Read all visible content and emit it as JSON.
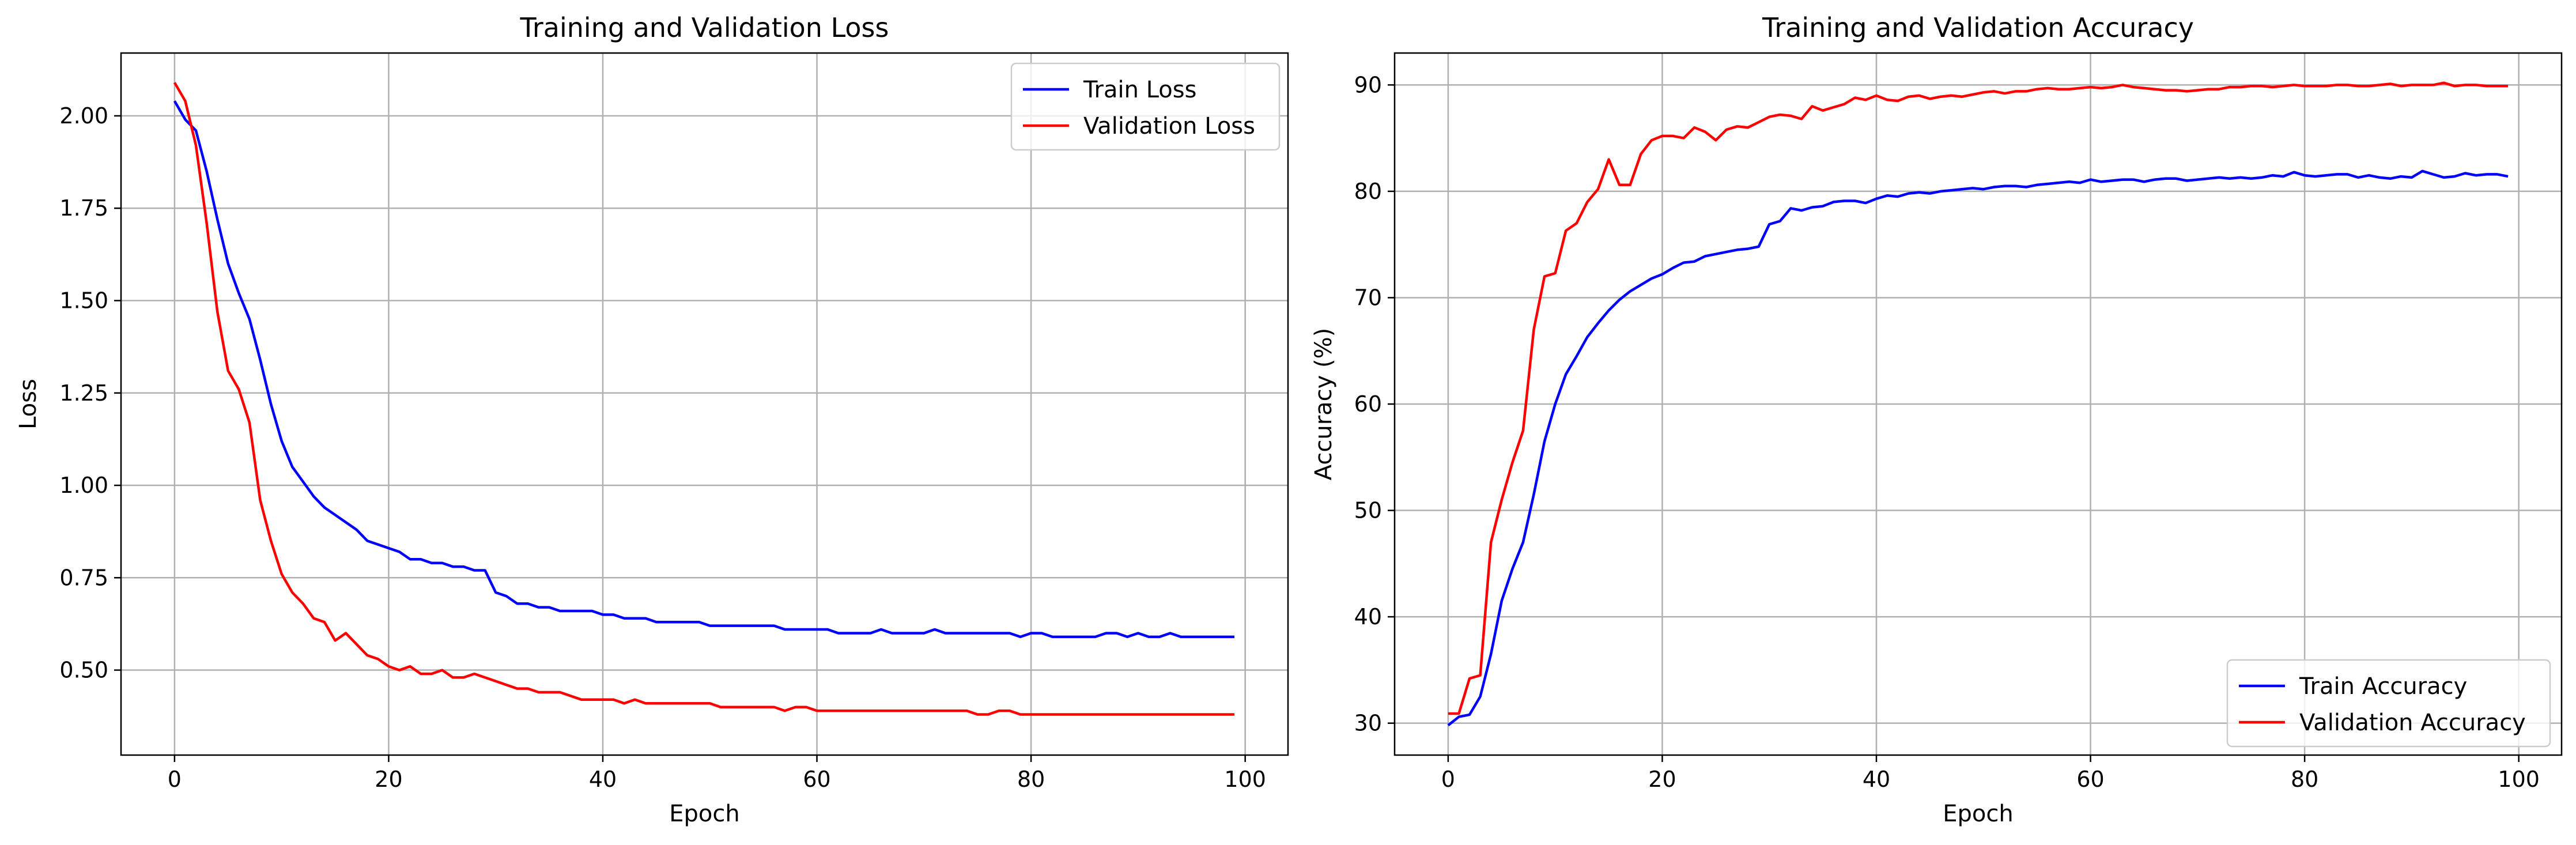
{
  "chart_data": [
    {
      "type": "line",
      "title": "Training and Validation Loss",
      "xlabel": "Epoch",
      "ylabel": "Loss",
      "xlim": [
        -5,
        104
      ],
      "ylim": [
        0.27,
        2.17
      ],
      "xticks": [
        0,
        20,
        40,
        60,
        80,
        100
      ],
      "yticks": [
        0.5,
        0.75,
        1.0,
        1.25,
        1.5,
        1.75,
        2.0
      ],
      "ytick_decimals": 2,
      "grid": true,
      "legend_position": "upper right",
      "series": [
        {
          "name": "Train Loss",
          "color": "#0000ff",
          "values": [
            2.04,
            1.99,
            1.96,
            1.85,
            1.72,
            1.6,
            1.52,
            1.45,
            1.34,
            1.22,
            1.12,
            1.05,
            1.01,
            0.97,
            0.94,
            0.92,
            0.9,
            0.88,
            0.85,
            0.84,
            0.83,
            0.82,
            0.8,
            0.8,
            0.79,
            0.79,
            0.78,
            0.78,
            0.77,
            0.77,
            0.71,
            0.7,
            0.68,
            0.68,
            0.67,
            0.67,
            0.66,
            0.66,
            0.66,
            0.66,
            0.65,
            0.65,
            0.64,
            0.64,
            0.64,
            0.63,
            0.63,
            0.63,
            0.63,
            0.63,
            0.62,
            0.62,
            0.62,
            0.62,
            0.62,
            0.62,
            0.62,
            0.61,
            0.61,
            0.61,
            0.61,
            0.61,
            0.6,
            0.6,
            0.6,
            0.6,
            0.61,
            0.6,
            0.6,
            0.6,
            0.6,
            0.61,
            0.6,
            0.6,
            0.6,
            0.6,
            0.6,
            0.6,
            0.6,
            0.59,
            0.6,
            0.6,
            0.59,
            0.59,
            0.59,
            0.59,
            0.59,
            0.6,
            0.6,
            0.59,
            0.6,
            0.59,
            0.59,
            0.6,
            0.59,
            0.59,
            0.59,
            0.59,
            0.59,
            0.59
          ]
        },
        {
          "name": "Validation Loss",
          "color": "#ff0000",
          "values": [
            2.09,
            2.04,
            1.92,
            1.71,
            1.47,
            1.31,
            1.26,
            1.17,
            0.96,
            0.85,
            0.76,
            0.71,
            0.68,
            0.64,
            0.63,
            0.58,
            0.6,
            0.57,
            0.54,
            0.53,
            0.51,
            0.5,
            0.51,
            0.49,
            0.49,
            0.5,
            0.48,
            0.48,
            0.49,
            0.48,
            0.47,
            0.46,
            0.45,
            0.45,
            0.44,
            0.44,
            0.44,
            0.43,
            0.42,
            0.42,
            0.42,
            0.42,
            0.41,
            0.42,
            0.41,
            0.41,
            0.41,
            0.41,
            0.41,
            0.41,
            0.41,
            0.4,
            0.4,
            0.4,
            0.4,
            0.4,
            0.4,
            0.39,
            0.4,
            0.4,
            0.39,
            0.39,
            0.39,
            0.39,
            0.39,
            0.39,
            0.39,
            0.39,
            0.39,
            0.39,
            0.39,
            0.39,
            0.39,
            0.39,
            0.39,
            0.38,
            0.38,
            0.39,
            0.39,
            0.38,
            0.38,
            0.38,
            0.38,
            0.38,
            0.38,
            0.38,
            0.38,
            0.38,
            0.38,
            0.38,
            0.38,
            0.38,
            0.38,
            0.38,
            0.38,
            0.38,
            0.38,
            0.38,
            0.38,
            0.38
          ]
        }
      ]
    },
    {
      "type": "line",
      "title": "Training and Validation Accuracy",
      "xlabel": "Epoch",
      "ylabel": "Accuracy (%)",
      "xlim": [
        -5,
        104
      ],
      "ylim": [
        27,
        93
      ],
      "xticks": [
        0,
        20,
        40,
        60,
        80,
        100
      ],
      "yticks": [
        30,
        40,
        50,
        60,
        70,
        80,
        90
      ],
      "ytick_decimals": 0,
      "grid": true,
      "legend_position": "lower right",
      "series": [
        {
          "name": "Train Accuracy",
          "color": "#0000ff",
          "values": [
            29.8,
            30.6,
            30.8,
            32.5,
            36.5,
            41.5,
            44.5,
            47.0,
            51.5,
            56.5,
            60.0,
            62.8,
            64.5,
            66.3,
            67.6,
            68.8,
            69.8,
            70.6,
            71.2,
            71.8,
            72.2,
            72.8,
            73.3,
            73.4,
            73.9,
            74.1,
            74.3,
            74.5,
            74.6,
            74.8,
            76.9,
            77.2,
            78.4,
            78.2,
            78.5,
            78.6,
            79.0,
            79.1,
            79.1,
            78.9,
            79.3,
            79.6,
            79.5,
            79.8,
            79.9,
            79.8,
            80.0,
            80.1,
            80.2,
            80.3,
            80.2,
            80.4,
            80.5,
            80.5,
            80.4,
            80.6,
            80.7,
            80.8,
            80.9,
            80.8,
            81.1,
            80.9,
            81.0,
            81.1,
            81.1,
            80.9,
            81.1,
            81.2,
            81.2,
            81.0,
            81.1,
            81.2,
            81.3,
            81.2,
            81.3,
            81.2,
            81.3,
            81.5,
            81.4,
            81.8,
            81.5,
            81.4,
            81.5,
            81.6,
            81.6,
            81.3,
            81.5,
            81.3,
            81.2,
            81.4,
            81.3,
            81.9,
            81.6,
            81.3,
            81.4,
            81.7,
            81.5,
            81.6,
            81.6,
            81.4
          ]
        },
        {
          "name": "Validation Accuracy",
          "color": "#ff0000",
          "values": [
            30.9,
            30.9,
            34.2,
            34.5,
            47.0,
            51.0,
            54.5,
            57.5,
            67.0,
            72.0,
            72.3,
            76.3,
            77.0,
            79.0,
            80.2,
            83.0,
            80.6,
            80.6,
            83.5,
            84.8,
            85.2,
            85.2,
            85.0,
            86.0,
            85.6,
            84.8,
            85.8,
            86.1,
            86.0,
            86.5,
            87.0,
            87.2,
            87.1,
            86.8,
            88.0,
            87.6,
            87.9,
            88.2,
            88.8,
            88.6,
            89.0,
            88.6,
            88.5,
            88.9,
            89.0,
            88.7,
            88.9,
            89.0,
            88.9,
            89.1,
            89.3,
            89.4,
            89.2,
            89.4,
            89.4,
            89.6,
            89.7,
            89.6,
            89.6,
            89.7,
            89.8,
            89.7,
            89.8,
            90.0,
            89.8,
            89.7,
            89.6,
            89.5,
            89.5,
            89.4,
            89.5,
            89.6,
            89.6,
            89.8,
            89.8,
            89.9,
            89.9,
            89.8,
            89.9,
            90.0,
            89.9,
            89.9,
            89.9,
            90.0,
            90.0,
            89.9,
            89.9,
            90.0,
            90.1,
            89.9,
            90.0,
            90.0,
            90.0,
            90.2,
            89.9,
            90.0,
            90.0,
            89.9,
            89.9,
            89.9
          ]
        }
      ]
    }
  ]
}
